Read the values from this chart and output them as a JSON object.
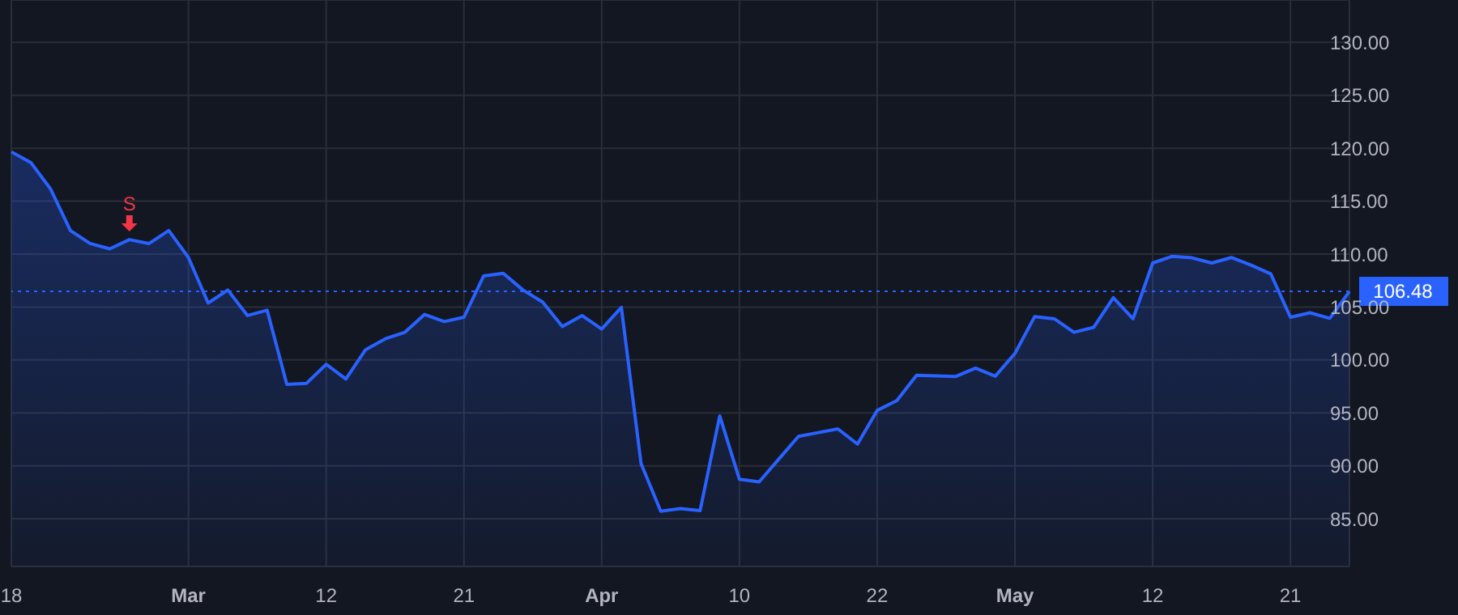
{
  "chart_data": {
    "type": "area",
    "categories": [
      "18",
      null,
      null,
      null,
      null,
      null,
      null,
      null,
      null,
      "Mar",
      null,
      null,
      null,
      null,
      null,
      null,
      "12",
      null,
      null,
      null,
      null,
      null,
      null,
      "21",
      null,
      null,
      null,
      null,
      null,
      null,
      "Apr",
      null,
      null,
      null,
      null,
      null,
      null,
      "10",
      null,
      null,
      null,
      null,
      null,
      null,
      "22",
      null,
      null,
      null,
      null,
      null,
      null,
      "May",
      null,
      null,
      null,
      null,
      null,
      null,
      "12",
      null,
      null,
      null,
      null,
      null,
      null,
      "21",
      null,
      null,
      null
    ],
    "series": [
      {
        "color": "#2962ff",
        "values": [
          119.66,
          118.63,
          116.13,
          112.23,
          111.0,
          110.5,
          111.37,
          111.0,
          112.23,
          109.68,
          105.38,
          106.61,
          104.2,
          104.7,
          97.7,
          97.8,
          99.59,
          98.21,
          100.97,
          102.0,
          102.62,
          104.3,
          103.63,
          104.04,
          107.93,
          108.19,
          106.61,
          105.47,
          103.17,
          104.2,
          102.92,
          104.97,
          90.22,
          85.72,
          85.97,
          85.77,
          94.72,
          88.73,
          88.49,
          90.64,
          92.79,
          93.14,
          93.49,
          92.06,
          95.24,
          96.17,
          98.56,
          98.5,
          98.45,
          99.24,
          98.47,
          100.62,
          104.09,
          103.89,
          102.62,
          103.08,
          105.89,
          103.89,
          109.16,
          109.8,
          109.65,
          109.16,
          109.68,
          108.96,
          108.14,
          104.04,
          104.46,
          103.94,
          106.48
        ]
      }
    ],
    "ylim": [
      80.5,
      134
    ],
    "yticks": [
      {
        "value": 85,
        "label": "85.00"
      },
      {
        "value": 90,
        "label": "90.00"
      },
      {
        "value": 95,
        "label": "95.00"
      },
      {
        "value": 100,
        "label": "100.00"
      },
      {
        "value": 105,
        "label": "105.00"
      },
      {
        "value": 110,
        "label": "110.00"
      },
      {
        "value": 115,
        "label": "115.00"
      },
      {
        "value": 120,
        "label": "120.00"
      },
      {
        "value": 125,
        "label": "125.00"
      },
      {
        "value": 130,
        "label": "130.00"
      }
    ],
    "grid": true,
    "ref_lines": [
      {
        "axis": "y",
        "value": 106.48,
        "label": "106.48",
        "color": "#2962ff",
        "line_style": "dotted"
      }
    ],
    "annotations": [
      {
        "text": "S",
        "y": 111.37
      }
    ]
  }
}
